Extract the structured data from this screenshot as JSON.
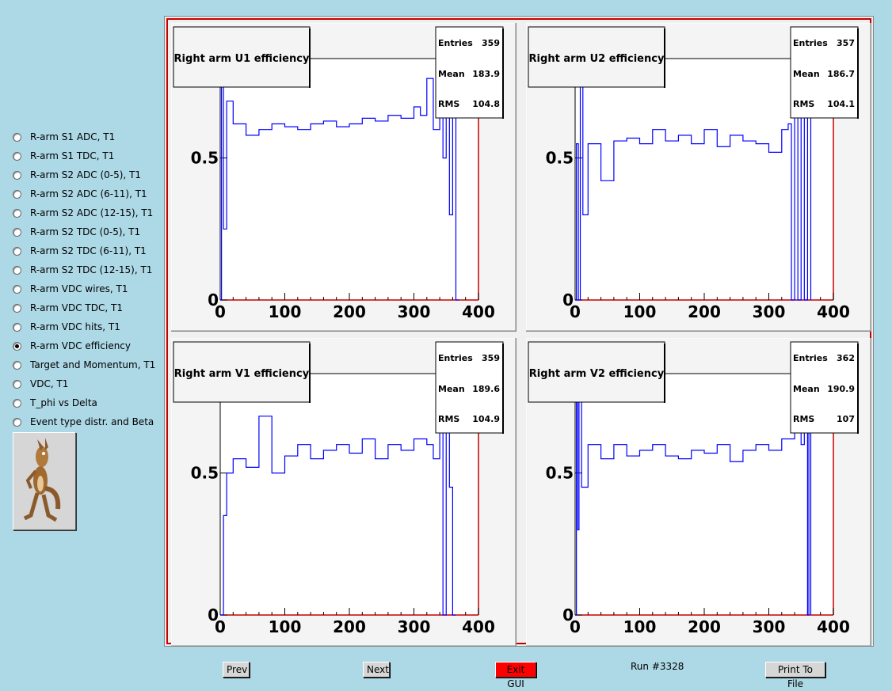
{
  "sidebar": {
    "items": [
      {
        "label": "R-arm S1 ADC, T1",
        "checked": false
      },
      {
        "label": "R-arm S1 TDC, T1",
        "checked": false
      },
      {
        "label": "R-arm S2 ADC (0-5), T1",
        "checked": false
      },
      {
        "label": "R-arm S2 ADC (6-11), T1",
        "checked": false
      },
      {
        "label": "R-arm S2 ADC (12-15), T1",
        "checked": false
      },
      {
        "label": "R-arm S2 TDC (0-5), T1",
        "checked": false
      },
      {
        "label": "R-arm S2 TDC (6-11), T1",
        "checked": false
      },
      {
        "label": "R-arm S2 TDC (12-15), T1",
        "checked": false
      },
      {
        "label": "R-arm VDC wires, T1",
        "checked": false
      },
      {
        "label": "R-arm VDC TDC, T1",
        "checked": false
      },
      {
        "label": "R-arm VDC hits, T1",
        "checked": false
      },
      {
        "label": "R-arm VDC efficiency",
        "checked": true
      },
      {
        "label": "Target and Momentum, T1",
        "checked": false
      },
      {
        "label": "VDC, T1",
        "checked": false
      },
      {
        "label": "T_phi vs Delta",
        "checked": false
      },
      {
        "label": "Event type distr. and Beta",
        "checked": false
      }
    ],
    "logo_icon": "coyote-icon"
  },
  "colors": {
    "background": "#add8e6",
    "trace": "#0000ff",
    "frame": "#c80000",
    "axis": "#c80000"
  },
  "chart_data": [
    {
      "type": "line",
      "title": "Right arm U1 efficiency",
      "stats": {
        "entries_label": "Entries",
        "entries": "359",
        "mean_label": "Mean",
        "mean": "183.9",
        "rms_label": "RMS",
        "rms": "104.8"
      },
      "x_ticks": [
        "0",
        "100",
        "200",
        "300",
        "400"
      ],
      "y_ticks": [
        "0",
        "0.5"
      ],
      "xlim": [
        0,
        400
      ],
      "ylim": [
        0,
        0.85
      ],
      "x": [
        0,
        2,
        5,
        10,
        20,
        40,
        60,
        80,
        100,
        120,
        140,
        160,
        180,
        200,
        220,
        240,
        260,
        280,
        300,
        310,
        320,
        330,
        340,
        345,
        350,
        355,
        360,
        365,
        370
      ],
      "values": [
        0.0,
        0.8,
        0.25,
        0.7,
        0.62,
        0.58,
        0.6,
        0.62,
        0.61,
        0.6,
        0.62,
        0.63,
        0.61,
        0.62,
        0.64,
        0.63,
        0.65,
        0.64,
        0.68,
        0.65,
        0.78,
        0.6,
        0.75,
        0.5,
        0.78,
        0.3,
        0.8,
        0.0,
        0.0
      ]
    },
    {
      "type": "line",
      "title": "Right arm U2 efficiency",
      "stats": {
        "entries_label": "Entries",
        "entries": "357",
        "mean_label": "Mean",
        "mean": "186.7",
        "rms_label": "RMS",
        "rms": "104.1"
      },
      "x_ticks": [
        "0",
        "100",
        "200",
        "300",
        "400"
      ],
      "y_ticks": [
        "0",
        "0.5"
      ],
      "xlim": [
        0,
        400
      ],
      "ylim": [
        0,
        0.85
      ],
      "x": [
        0,
        2,
        5,
        8,
        12,
        20,
        40,
        60,
        80,
        100,
        120,
        140,
        160,
        180,
        200,
        220,
        240,
        260,
        280,
        300,
        320,
        330,
        335,
        340,
        345,
        350,
        355,
        360,
        365
      ],
      "values": [
        0.0,
        0.55,
        0.0,
        0.85,
        0.3,
        0.55,
        0.42,
        0.56,
        0.57,
        0.55,
        0.6,
        0.56,
        0.58,
        0.55,
        0.6,
        0.54,
        0.58,
        0.56,
        0.55,
        0.52,
        0.6,
        0.62,
        0.0,
        0.68,
        0.0,
        0.85,
        0.0,
        0.75,
        0.0
      ]
    },
    {
      "type": "line",
      "title": "Right arm V1 efficiency",
      "stats": {
        "entries_label": "Entries",
        "entries": "359",
        "mean_label": "Mean",
        "mean": "189.6",
        "rms_label": "RMS",
        "rms": "104.9"
      },
      "x_ticks": [
        "0",
        "100",
        "200",
        "300",
        "400"
      ],
      "y_ticks": [
        "0",
        "0.5"
      ],
      "xlim": [
        0,
        400
      ],
      "ylim": [
        0,
        0.85
      ],
      "x": [
        0,
        5,
        10,
        20,
        40,
        60,
        80,
        100,
        120,
        140,
        160,
        180,
        200,
        220,
        240,
        260,
        280,
        300,
        320,
        330,
        340,
        345,
        350,
        355,
        360,
        365
      ],
      "values": [
        0.0,
        0.35,
        0.5,
        0.55,
        0.52,
        0.7,
        0.5,
        0.56,
        0.6,
        0.55,
        0.58,
        0.6,
        0.57,
        0.62,
        0.55,
        0.6,
        0.58,
        0.62,
        0.6,
        0.55,
        0.75,
        0.0,
        0.85,
        0.45,
        0.0,
        0.0
      ]
    },
    {
      "type": "line",
      "title": "Right arm V2 efficiency",
      "stats": {
        "entries_label": "Entries",
        "entries": "362",
        "mean_label": "Mean",
        "mean": "190.9",
        "rms_label": "RMS",
        "rms": "107"
      },
      "x_ticks": [
        "0",
        "100",
        "200",
        "300",
        "400"
      ],
      "y_ticks": [
        "0",
        "0.5"
      ],
      "xlim": [
        0,
        400
      ],
      "ylim": [
        0,
        0.85
      ],
      "x": [
        0,
        2,
        4,
        6,
        10,
        20,
        40,
        60,
        80,
        100,
        120,
        140,
        160,
        180,
        200,
        220,
        240,
        260,
        280,
        300,
        320,
        340,
        350,
        355,
        360,
        362,
        365
      ],
      "values": [
        0.0,
        0.85,
        0.3,
        0.85,
        0.45,
        0.6,
        0.55,
        0.6,
        0.56,
        0.58,
        0.6,
        0.56,
        0.55,
        0.58,
        0.57,
        0.6,
        0.54,
        0.58,
        0.6,
        0.58,
        0.62,
        0.7,
        0.6,
        0.75,
        0.0,
        0.78,
        0.0
      ]
    }
  ],
  "buttons": {
    "prev": "Prev",
    "next": "Next",
    "exit": "Exit GUI",
    "print": "Print To File"
  },
  "run_label": "Run #3328"
}
